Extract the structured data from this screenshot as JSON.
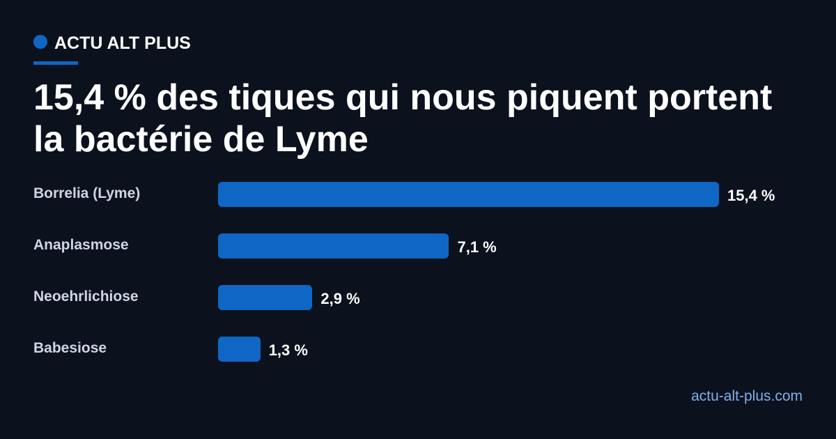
{
  "brand": "ACTU ALT PLUS",
  "chart_data": {
    "type": "bar",
    "orientation": "horizontal",
    "title": "15,4 % des tiques qui nous piquent portent la bactérie de Lyme",
    "categories": [
      "Borrelia (Lyme)",
      "Anaplasmose",
      "Neoehrlichiose",
      "Babesiose"
    ],
    "values": [
      15.4,
      7.1,
      2.9,
      1.3
    ],
    "value_labels": [
      "15,4 %",
      "7,1 %",
      "2,9 %",
      "1,3 %"
    ],
    "color": "#0f66c5"
  },
  "footer": "actu-alt-plus.com"
}
